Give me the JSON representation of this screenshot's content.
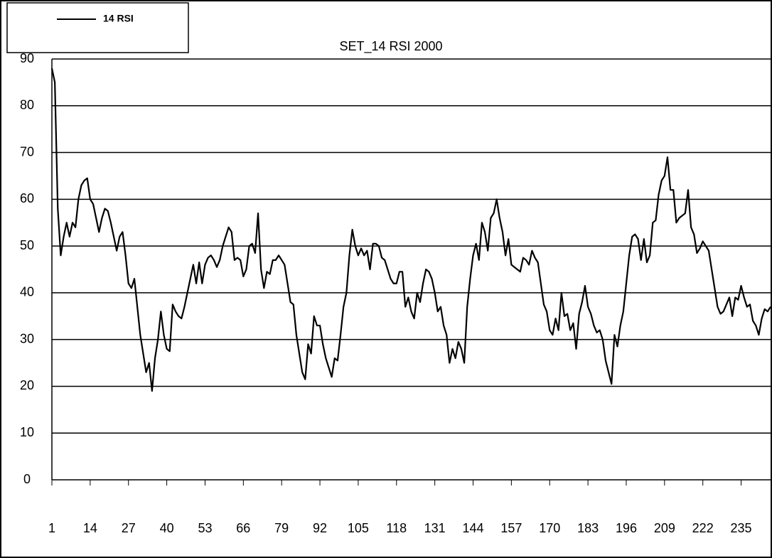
{
  "chart_data": {
    "type": "line",
    "title": "SET_14 RSI 2000",
    "x": [
      1,
      2,
      3,
      4,
      5,
      6,
      7,
      8,
      9,
      10,
      11,
      12,
      13,
      14,
      15,
      16,
      17,
      18,
      19,
      20,
      21,
      22,
      23,
      24,
      25,
      26,
      27,
      28,
      29,
      30,
      31,
      32,
      33,
      34,
      35,
      36,
      37,
      38,
      39,
      40,
      41,
      42,
      43,
      44,
      45,
      46,
      47,
      48,
      49,
      50,
      51,
      52,
      53,
      54,
      55,
      56,
      57,
      58,
      59,
      60,
      61,
      62,
      63,
      64,
      65,
      66,
      67,
      68,
      69,
      70,
      71,
      72,
      73,
      74,
      75,
      76,
      77,
      78,
      79,
      80,
      81,
      82,
      83,
      84,
      85,
      86,
      87,
      88,
      89,
      90,
      91,
      92,
      93,
      94,
      95,
      96,
      97,
      98,
      99,
      100,
      101,
      102,
      103,
      104,
      105,
      106,
      107,
      108,
      109,
      110,
      111,
      112,
      113,
      114,
      115,
      116,
      117,
      118,
      119,
      120,
      121,
      122,
      123,
      124,
      125,
      126,
      127,
      128,
      129,
      130,
      131,
      132,
      133,
      134,
      135,
      136,
      137,
      138,
      139,
      140,
      141,
      142,
      143,
      144,
      145,
      146,
      147,
      148,
      149,
      150,
      151,
      152,
      153,
      154,
      155,
      156,
      157,
      158,
      159,
      160,
      161,
      162,
      163,
      164,
      165,
      166,
      167,
      168,
      169,
      170,
      171,
      172,
      173,
      174,
      175,
      176,
      177,
      178,
      179,
      180,
      181,
      182,
      183,
      184,
      185,
      186,
      187,
      188,
      189,
      190,
      191,
      192,
      193,
      194,
      195,
      196,
      197,
      198,
      199,
      200,
      201,
      202,
      203,
      204,
      205,
      206,
      207,
      208,
      209,
      210,
      211,
      212,
      213,
      214,
      215,
      216,
      217,
      218,
      219,
      220,
      221,
      222,
      223,
      224,
      225,
      226,
      227,
      228,
      229,
      230,
      231,
      232,
      233,
      234,
      235,
      236,
      237,
      238,
      239,
      240,
      241,
      242,
      243,
      244,
      245
    ],
    "series": [
      {
        "name": "14 RSI",
        "color": "#000000",
        "values": [
          88,
          85,
          58,
          48,
          52,
          55,
          52,
          55,
          54,
          60,
          63,
          64,
          64.5,
          60,
          59,
          56,
          53,
          56,
          58,
          57.5,
          55,
          52,
          49,
          52,
          53,
          48,
          42,
          41,
          43,
          37,
          31,
          27,
          23,
          25,
          19,
          26,
          30,
          36,
          31,
          28,
          27.5,
          37.5,
          36,
          35,
          34.5,
          37,
          40,
          43,
          46,
          42,
          46.5,
          42,
          46,
          47.5,
          48,
          47,
          45.5,
          47,
          50,
          52,
          54,
          53,
          47,
          47.5,
          47,
          43.5,
          45,
          50,
          50.5,
          48.5,
          57,
          45,
          41,
          44.5,
          44,
          47,
          47,
          48,
          47,
          46,
          42,
          38,
          37.5,
          31,
          27,
          23,
          21.5,
          29,
          27,
          35,
          33,
          33,
          29,
          26,
          24,
          22,
          26,
          25.5,
          31,
          37,
          40,
          48,
          53.5,
          50,
          48,
          49.5,
          48,
          49,
          45,
          50.5,
          50.5,
          50,
          47.5,
          47,
          45,
          43,
          42,
          42,
          44.5,
          44.5,
          37,
          39,
          36,
          34.5,
          40,
          38,
          42,
          45,
          44.5,
          43,
          40,
          36,
          37,
          33,
          31,
          25,
          28,
          26,
          29.5,
          28,
          25,
          37,
          43,
          48,
          50.5,
          47,
          55,
          53,
          49,
          56,
          57,
          60,
          56,
          53,
          48,
          51.5,
          46,
          45.5,
          45,
          44.5,
          47.5,
          47,
          46,
          49,
          47.5,
          46.5,
          42,
          37.5,
          36,
          32,
          31,
          34.5,
          32,
          40,
          35,
          35.5,
          32,
          33.5,
          28,
          35.5,
          38,
          41.5,
          37,
          35.5,
          33,
          31.5,
          32,
          30,
          25.5,
          23,
          20.5,
          31,
          28.5,
          33,
          36,
          42,
          48,
          52,
          52.5,
          51.5,
          47,
          51.5,
          46.5,
          48,
          55,
          55.5,
          61,
          64,
          65,
          69,
          62,
          62,
          55,
          56,
          56.5,
          57,
          62,
          54,
          52.5,
          48.5,
          49.5,
          51,
          50,
          49,
          45,
          41,
          37,
          35.5,
          36,
          37.5,
          39,
          35,
          39,
          38.5,
          41.5,
          39,
          37,
          37.5,
          34,
          33,
          31,
          34.5,
          36.5,
          36,
          37
        ]
      }
    ],
    "xlim": [
      1,
      245
    ],
    "xticks": [
      1,
      14,
      27,
      40,
      53,
      66,
      79,
      92,
      105,
      118,
      131,
      144,
      157,
      170,
      183,
      196,
      209,
      222,
      235
    ],
    "ylim": [
      0,
      90
    ],
    "yticks": [
      0,
      10,
      20,
      30,
      40,
      50,
      60,
      70,
      80,
      90
    ],
    "grid": true,
    "legend": "top-left"
  }
}
